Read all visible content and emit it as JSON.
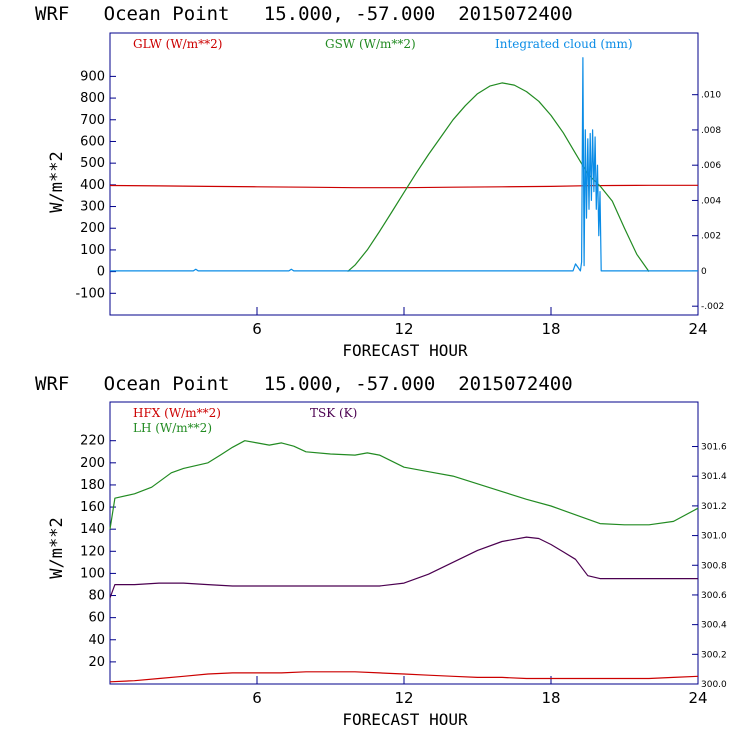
{
  "colors": {
    "frame": "#00008b",
    "red": "#cc0000",
    "green": "#228b22",
    "blue": "#0a8ce6",
    "purple": "#4b0050"
  },
  "chart_data": [
    {
      "type": "line",
      "title": "WRF   Ocean Point   15.000, -57.000  2015072400",
      "xlabel": "FORECAST HOUR",
      "ylabel": "W/m**2",
      "xlim": [
        0,
        24
      ],
      "ylim": [
        -200,
        1100
      ],
      "y2lim": [
        -0.0025,
        0.0135
      ],
      "xticks": [
        6,
        12,
        18,
        24
      ],
      "yticks": [
        -100,
        0,
        100,
        200,
        300,
        400,
        500,
        600,
        700,
        800,
        900
      ],
      "y2ticks": [
        -0.002,
        0,
        0.002,
        0.004,
        0.006,
        0.008,
        0.01
      ],
      "y2tick_labels": [
        "-.002",
        "0",
        ".002",
        ".004",
        ".006",
        ".008",
        ".010"
      ],
      "series": [
        {
          "name": "GLW (W/m**2)",
          "color": "#cc0000",
          "axis": "left",
          "x": [
            0,
            2,
            4,
            6,
            8,
            10,
            12,
            14,
            16,
            18,
            19.5,
            20.5,
            22,
            24
          ],
          "y": [
            397,
            395,
            393,
            391,
            389,
            387,
            387,
            389,
            391,
            393,
            396,
            397,
            398,
            398
          ]
        },
        {
          "name": "GSW (W/m**2)",
          "color": "#228b22",
          "axis": "left",
          "x": [
            9.7,
            10,
            10.5,
            11,
            11.5,
            12,
            12.5,
            13,
            13.5,
            14,
            14.5,
            15,
            15.5,
            16,
            16.5,
            17,
            17.5,
            18,
            18.5,
            19,
            19.5,
            20,
            20.5,
            21,
            21.5,
            22
          ],
          "y": [
            0,
            30,
            100,
            185,
            275,
            365,
            455,
            540,
            620,
            700,
            765,
            820,
            855,
            870,
            860,
            830,
            785,
            720,
            640,
            545,
            450,
            395,
            325,
            200,
            80,
            0
          ]
        },
        {
          "name": "Integrated cloud (mm)",
          "color": "#0a8ce6",
          "axis": "right",
          "x": [
            0,
            3.4,
            3.5,
            3.6,
            7.3,
            7.4,
            7.5,
            18.9,
            19.0,
            19.1,
            19.2,
            19.25,
            19.3,
            19.35,
            19.4,
            19.45,
            19.5,
            19.55,
            19.6,
            19.65,
            19.7,
            19.75,
            19.8,
            19.85,
            19.9,
            19.95,
            20.0,
            20.05,
            24
          ],
          "y": [
            0,
            0,
            0.0001,
            0,
            0,
            0.0001,
            0,
            0,
            0.0004,
            0.0002,
            0,
            0.0005,
            0.0121,
            0.0003,
            0.008,
            0.003,
            0.0075,
            0.0035,
            0.0078,
            0.004,
            0.008,
            0.0045,
            0.0076,
            0.0035,
            0.006,
            0.002,
            0.0045,
            0,
            0
          ]
        }
      ]
    },
    {
      "type": "line",
      "title": "WRF   Ocean Point   15.000, -57.000  2015072400",
      "xlabel": "FORECAST HOUR",
      "ylabel": "W/m**2",
      "xlim": [
        0,
        24
      ],
      "ylim": [
        0,
        255
      ],
      "y2lim": [
        300.0,
        301.9
      ],
      "xticks": [
        6,
        12,
        18,
        24
      ],
      "yticks": [
        20,
        40,
        60,
        80,
        100,
        120,
        140,
        160,
        180,
        200,
        220
      ],
      "y2ticks": [
        300.0,
        300.2,
        300.4,
        300.6,
        300.8,
        301.0,
        301.2,
        301.4,
        301.6
      ],
      "y2tick_labels": [
        "300.0",
        "300.2",
        "300.4",
        "300.6",
        "300.8",
        "301.0",
        "301.2",
        "301.4",
        "301.6"
      ],
      "series": [
        {
          "name": "HFX (W/m**2)",
          "color": "#cc0000",
          "axis": "left",
          "x": [
            0,
            1,
            2,
            3,
            4,
            5,
            6,
            7,
            8,
            9,
            10,
            11,
            12,
            13,
            14,
            15,
            16,
            17,
            18,
            19,
            20,
            21,
            22,
            23,
            24
          ],
          "y": [
            2,
            3,
            5,
            7,
            9,
            10,
            10,
            10,
            11,
            11,
            11,
            10,
            9,
            8,
            7,
            6,
            6,
            5,
            5,
            5,
            5,
            5,
            5,
            6,
            7
          ]
        },
        {
          "name": "LH (W/m**2)",
          "color": "#228b22",
          "axis": "left",
          "x": [
            0,
            0.2,
            1,
            1.7,
            2.5,
            3,
            4,
            4.5,
            5,
            5.5,
            6,
            6.5,
            7,
            7.5,
            8,
            9,
            10,
            10.5,
            11,
            12,
            13,
            14,
            15,
            16,
            17,
            18,
            19,
            20,
            21,
            22,
            23,
            24
          ],
          "y": [
            140,
            168,
            172,
            178,
            191,
            195,
            200,
            207,
            214,
            220,
            218,
            216,
            218,
            215,
            210,
            208,
            207,
            209,
            207,
            196,
            192,
            188,
            181,
            174,
            167,
            161,
            153,
            145,
            144,
            144,
            147,
            159
          ]
        },
        {
          "name": "TSK (K)",
          "color": "#4b0050",
          "axis": "right",
          "x": [
            0,
            0.2,
            1,
            2,
            3,
            4,
            5,
            6,
            7,
            8,
            9,
            10,
            11,
            12,
            13,
            14,
            15,
            16,
            17,
            17.5,
            18,
            18.5,
            19,
            19.5,
            20,
            21,
            22,
            23,
            24
          ],
          "y": [
            300.58,
            300.67,
            300.67,
            300.68,
            300.68,
            300.67,
            300.66,
            300.66,
            300.66,
            300.66,
            300.66,
            300.66,
            300.66,
            300.68,
            300.74,
            300.82,
            300.9,
            300.96,
            300.99,
            300.98,
            300.94,
            300.89,
            300.84,
            300.73,
            300.71,
            300.71,
            300.71,
            300.71,
            300.71
          ]
        }
      ]
    }
  ]
}
